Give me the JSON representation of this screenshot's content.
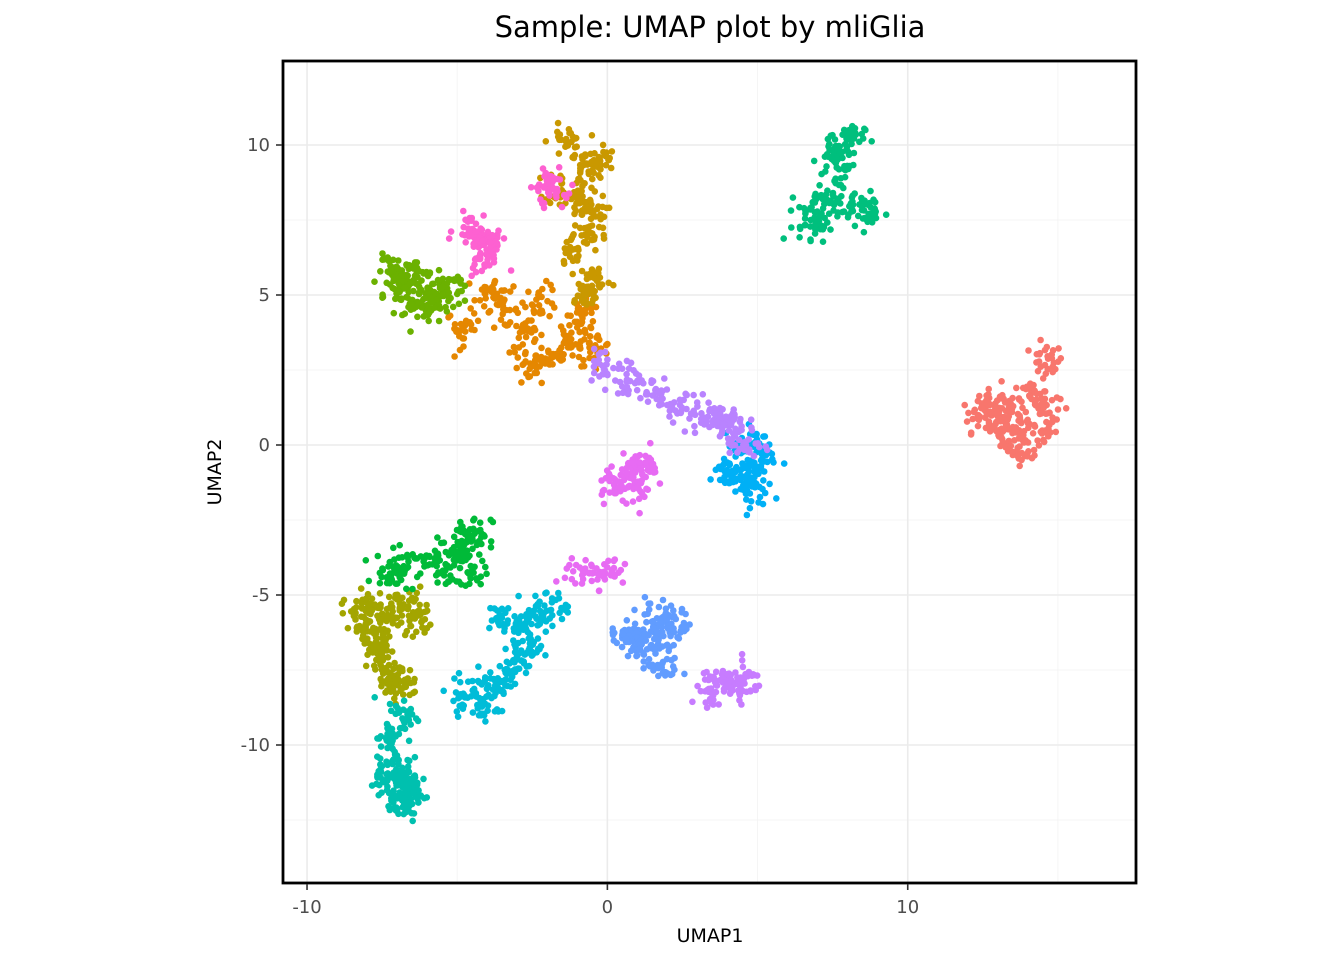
{
  "chart_data": {
    "type": "scatter",
    "title": "Sample: UMAP plot by mliGlia",
    "xlabel": "UMAP1",
    "ylabel": "UMAP2",
    "xlim": [
      -10.8,
      17.6
    ],
    "ylim": [
      -14.6,
      12.8
    ],
    "x_ticks": [
      -10,
      0,
      10
    ],
    "x_tick_labels": [
      "-10",
      "0",
      "10"
    ],
    "y_ticks": [
      10,
      5,
      0,
      -5,
      -10
    ],
    "y_tick_labels": [
      "10",
      "5",
      "0",
      "-5",
      "-10"
    ],
    "grid": true,
    "legend": "none",
    "clusters": [
      {
        "color": "#F8766D",
        "centroids": [
          [
            12.8,
            1.3
          ],
          [
            13.6,
            0.3
          ],
          [
            14.6,
            2.8
          ],
          [
            13.4,
            1.0
          ],
          [
            14.4,
            0.5
          ],
          [
            13.0,
            0.8
          ],
          [
            14.1,
            1.8
          ],
          [
            12.4,
            1.0
          ],
          [
            14.5,
            1.3
          ],
          [
            13.9,
            -0.1
          ]
        ]
      },
      {
        "color": "#E58700",
        "centroids": [
          [
            -4.8,
            3.9
          ],
          [
            -3.5,
            4.5
          ],
          [
            -2.7,
            3.6
          ],
          [
            -1.8,
            3.0
          ],
          [
            -1.2,
            3.4
          ],
          [
            -2.6,
            2.5
          ],
          [
            -0.8,
            4.2
          ],
          [
            -3.8,
            5.1
          ],
          [
            -2.2,
            4.8
          ],
          [
            -0.4,
            3.2
          ]
        ]
      },
      {
        "color": "#C99800",
        "centroids": [
          [
            -1.4,
            10.1
          ],
          [
            -0.7,
            9.2
          ],
          [
            -1.0,
            8.0
          ],
          [
            -0.6,
            7.0
          ],
          [
            -0.4,
            5.5
          ],
          [
            -1.1,
            6.5
          ],
          [
            -0.3,
            9.5
          ],
          [
            -1.5,
            8.6
          ],
          [
            -0.8,
            5.0
          ],
          [
            -0.6,
            7.8
          ]
        ]
      },
      {
        "color": "#A3A500",
        "centroids": [
          [
            -8.3,
            -5.7
          ],
          [
            -7.8,
            -6.2
          ],
          [
            -7.3,
            -5.7
          ],
          [
            -7.4,
            -7.4
          ],
          [
            -7.1,
            -8.0
          ],
          [
            -6.7,
            -5.3
          ],
          [
            -6.3,
            -5.8
          ],
          [
            -8.0,
            -5.4
          ],
          [
            -7.6,
            -6.6
          ],
          [
            -6.9,
            -7.9
          ]
        ]
      },
      {
        "color": "#6BB100",
        "centroids": [
          [
            -7.1,
            5.8
          ],
          [
            -6.7,
            5.4
          ],
          [
            -5.8,
            5.1
          ],
          [
            -6.2,
            4.6
          ],
          [
            -6.8,
            5.0
          ],
          [
            -5.3,
            5.2
          ],
          [
            -6.4,
            5.7
          ],
          [
            -5.6,
            4.8
          ]
        ]
      },
      {
        "color": "#00BA38",
        "centroids": [
          [
            -6.8,
            -4.1
          ],
          [
            -5.9,
            -3.9
          ],
          [
            -4.7,
            -3.1
          ],
          [
            -4.9,
            -3.6
          ],
          [
            -4.6,
            -4.3
          ],
          [
            -5.4,
            -4.0
          ],
          [
            -7.2,
            -4.2
          ],
          [
            -4.4,
            -2.9
          ]
        ]
      },
      {
        "color": "#00BF7D",
        "centroids": [
          [
            7.6,
            9.9
          ],
          [
            8.0,
            10.2
          ],
          [
            7.4,
            8.3
          ],
          [
            8.2,
            7.9
          ],
          [
            6.9,
            7.8
          ],
          [
            8.7,
            7.7
          ],
          [
            6.8,
            7.3
          ],
          [
            7.7,
            9.4
          ]
        ]
      },
      {
        "color": "#00C0AF",
        "centroids": [
          [
            -7.1,
            -11.5
          ],
          [
            -6.8,
            -12.0
          ],
          [
            -6.6,
            -11.2
          ],
          [
            -7.0,
            -10.6
          ],
          [
            -7.2,
            -9.8
          ],
          [
            -6.8,
            -9.0
          ],
          [
            -6.5,
            -11.7
          ],
          [
            -7.3,
            -11.0
          ]
        ]
      },
      {
        "color": "#00BCD8",
        "centroids": [
          [
            -4.8,
            -8.3
          ],
          [
            -3.9,
            -8.0
          ],
          [
            -3.3,
            -7.6
          ],
          [
            -2.8,
            -7.0
          ],
          [
            -2.8,
            -6.4
          ],
          [
            -3.4,
            -5.8
          ],
          [
            -2.4,
            -5.8
          ],
          [
            -4.2,
            -8.7
          ],
          [
            -1.9,
            -5.4
          ]
        ]
      },
      {
        "color": "#00B0F6",
        "centroids": [
          [
            4.5,
            -0.6
          ],
          [
            5.1,
            -0.5
          ],
          [
            4.4,
            -1.2
          ],
          [
            4.7,
            -1.5
          ],
          [
            4.0,
            -0.9
          ],
          [
            4.9,
            0.1
          ]
        ]
      },
      {
        "color": "#619CFF",
        "centroids": [
          [
            0.8,
            -6.5
          ],
          [
            1.6,
            -6.4
          ],
          [
            1.9,
            -7.4
          ],
          [
            1.8,
            -5.6
          ],
          [
            0.6,
            -6.2
          ],
          [
            1.3,
            -6.9
          ],
          [
            2.3,
            -6.1
          ]
        ]
      },
      {
        "color": "#B983FF",
        "centroids": [
          [
            -0.1,
            2.7
          ],
          [
            0.8,
            2.2
          ],
          [
            1.6,
            1.7
          ],
          [
            2.4,
            1.3
          ],
          [
            3.3,
            1.0
          ],
          [
            4.1,
            0.6
          ],
          [
            3.8,
            0.9
          ],
          [
            4.6,
            0.0
          ]
        ]
      },
      {
        "color": "#E76BF3",
        "centroids": [
          [
            0.2,
            -1.3
          ],
          [
            0.9,
            -1.4
          ],
          [
            1.1,
            -0.9
          ],
          [
            -0.9,
            -4.3
          ],
          [
            0.1,
            -4.2
          ],
          [
            1.2,
            -0.7
          ]
        ]
      },
      {
        "color": "#C77CFF",
        "centroids": [
          [
            3.4,
            -8.3
          ],
          [
            4.0,
            -8.0
          ],
          [
            4.6,
            -7.9
          ],
          [
            4.2,
            -8.1
          ]
        ]
      },
      {
        "color": "#FD61D1",
        "centroids": [
          [
            -4.3,
            6.9
          ],
          [
            -4.0,
            6.6
          ],
          [
            -4.5,
            7.2
          ],
          [
            -1.9,
            8.9
          ],
          [
            -2.0,
            8.5
          ],
          [
            -4.1,
            6.3
          ]
        ]
      }
    ]
  }
}
